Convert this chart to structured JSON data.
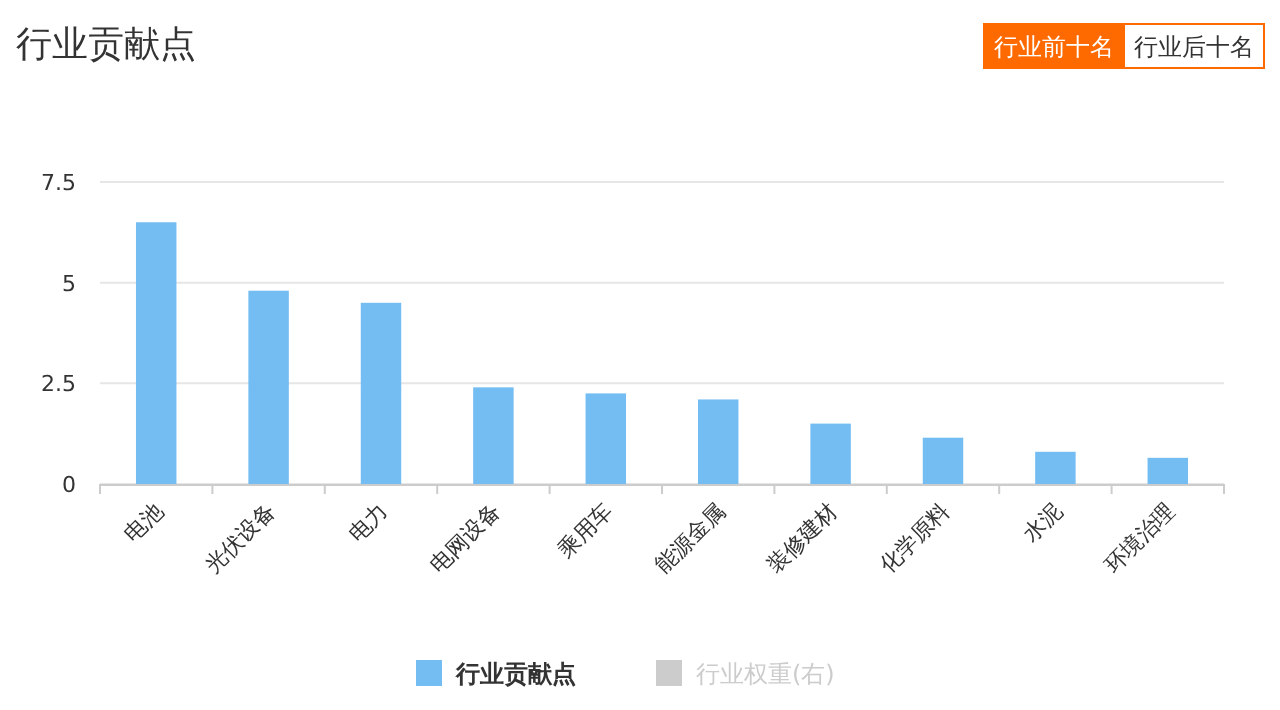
{
  "chart_data": {
    "type": "bar",
    "title": "行业贡献点",
    "annotations": [
      "行业前十名",
      "行业后十名"
    ],
    "categories": [
      "电池",
      "光伏设备",
      "电力",
      "电网设备",
      "乘用车",
      "能源金属",
      "装修建材",
      "化学原料",
      "水泥",
      "环境治理"
    ],
    "series": [
      {
        "name": "行业贡献点",
        "color": "#74bdf3",
        "values": [
          6.5,
          4.8,
          4.5,
          2.4,
          2.25,
          2.1,
          1.5,
          1.15,
          0.8,
          0.65
        ]
      },
      {
        "name": "行业权重(右)",
        "color": "#cccccc",
        "values": [
          null,
          null,
          null,
          null,
          null,
          null,
          null,
          null,
          null,
          null
        ]
      }
    ],
    "ylim": [
      0,
      7.5
    ],
    "yticks": [
      0,
      2.5,
      5,
      7.5
    ],
    "grid": "y",
    "legend": "bottom"
  }
}
